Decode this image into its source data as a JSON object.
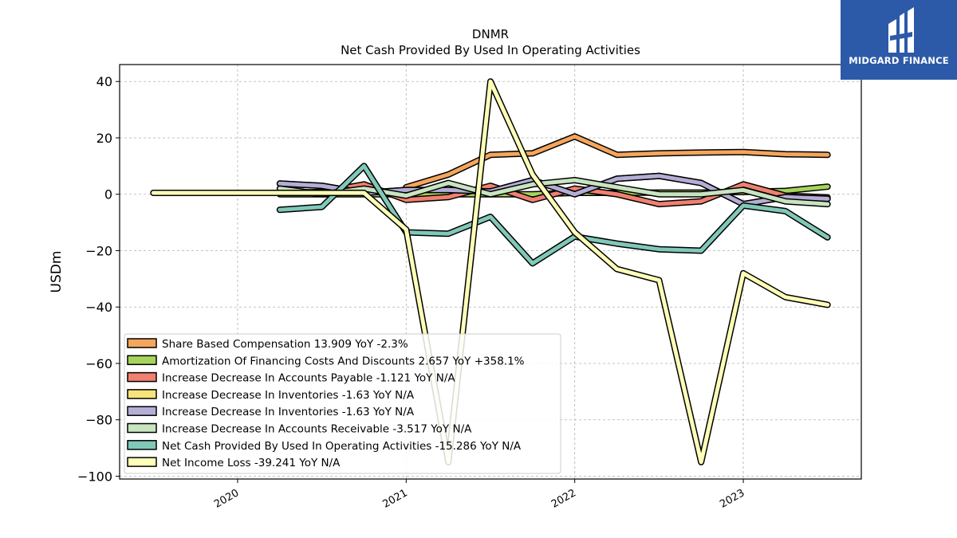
{
  "logo": {
    "text": "MIDGARD FINANCE",
    "color": "#2d5aa8"
  },
  "chart_data": {
    "type": "line",
    "title": "DNMR",
    "subtitle": "Net Cash Provided By Used In Operating Activities",
    "ylabel": "USDm",
    "xlabel": "",
    "ylim": [
      -101,
      46
    ],
    "xlim": [
      2019.3,
      2023.7
    ],
    "yticks": [
      40,
      20,
      0,
      -20,
      -40,
      -60,
      -80,
      -100
    ],
    "ytick_labels": [
      "40",
      "20",
      "0",
      "−20",
      "−40",
      "−60",
      "−80",
      "−100"
    ],
    "xticks": [
      2020,
      2021,
      2022,
      2023
    ],
    "xtick_labels": [
      "2020",
      "2021",
      "2022",
      "2023"
    ],
    "grid": true,
    "legend_position": "bottom-left",
    "series": [
      {
        "name": "Share Based Compensation  13.909 YoY -2.3%",
        "color": "#f5a55c",
        "x": [
          2021.0,
          2021.25,
          2021.5,
          2021.75,
          2022.0,
          2022.25,
          2022.5,
          2022.75,
          2023.0,
          2023.25,
          2023.5
        ],
        "values": [
          2.5,
          7,
          14,
          14.5,
          20.5,
          14,
          14.5,
          14.8,
          15,
          14.2,
          14
        ]
      },
      {
        "name": "Amortization Of Financing Costs And Discounts  2.657 YoY +358.1%",
        "color": "#a5d45c",
        "x": [
          2020.25,
          2020.5,
          2020.75,
          2021.0,
          2021.25,
          2021.5,
          2021.75,
          2022.0,
          2022.25,
          2022.5,
          2022.75,
          2023.0,
          2023.25,
          2023.5
        ],
        "values": [
          0,
          0,
          0,
          0,
          0,
          0,
          0,
          0.5,
          0.5,
          0.6,
          0.6,
          0.8,
          1.2,
          2.7
        ]
      },
      {
        "name": "Increase Decrease In Accounts Payable  -1.121 YoY N/A",
        "color": "#f08070",
        "x": [
          2020.25,
          2020.5,
          2020.75,
          2021.0,
          2021.25,
          2021.5,
          2021.75,
          2022.0,
          2022.25,
          2022.5,
          2022.75,
          2023.0,
          2023.25,
          2023.5
        ],
        "values": [
          0.5,
          0.8,
          3.5,
          -2,
          -1,
          3,
          -2,
          2,
          0,
          -3.5,
          -2.5,
          3.5,
          -0.5,
          -1.1
        ]
      },
      {
        "name": "Increase Decrease In Inventories  -1.63 YoY N/A",
        "color": "#f7e37a",
        "x": [
          2020.25,
          2020.5,
          2020.75,
          2021.0,
          2021.25,
          2021.5,
          2021.75,
          2022.0,
          2022.25,
          2022.5,
          2022.75,
          2023.0,
          2023.25,
          2023.5
        ],
        "values": [
          3.8,
          3,
          0.5,
          1.5,
          1.5,
          1,
          5,
          0,
          5.5,
          6.5,
          4,
          -3.5,
          -1,
          -1.6
        ]
      },
      {
        "name": "Increase Decrease In Inventories  -1.63 YoY N/A",
        "color": "#b4aed6",
        "x": [
          2020.25,
          2020.5,
          2020.75,
          2021.0,
          2021.25,
          2021.5,
          2021.75,
          2022.0,
          2022.25,
          2022.5,
          2022.75,
          2023.0,
          2023.25,
          2023.5
        ],
        "values": [
          3.8,
          3,
          0.5,
          1.5,
          1.5,
          1,
          5,
          0,
          5.5,
          6.5,
          4,
          -3.5,
          -1,
          -1.6
        ]
      },
      {
        "name": "Increase Decrease In Accounts Receivable  -3.517 YoY N/A",
        "color": "#c8e4c0",
        "x": [
          2020.25,
          2020.5,
          2020.75,
          2021.0,
          2021.25,
          2021.5,
          2021.75,
          2022.0,
          2022.25,
          2022.5,
          2022.75,
          2023.0,
          2023.25,
          2023.5
        ],
        "values": [
          2,
          0,
          2,
          -0.5,
          4,
          0,
          3.5,
          5,
          2.5,
          0,
          0,
          1.5,
          -2.5,
          -3.5
        ]
      },
      {
        "name": "Net Cash Provided By Used In Operating Activities  -15.286 YoY N/A",
        "color": "#80c8b8",
        "x": [
          2020.25,
          2020.5,
          2020.75,
          2021.0,
          2021.25,
          2021.5,
          2021.75,
          2022.0,
          2022.25,
          2022.5,
          2022.75,
          2023.0,
          2023.25,
          2023.5
        ],
        "values": [
          -5.5,
          -4.5,
          10,
          -13.5,
          -14,
          -8,
          -24.5,
          -15,
          -17.5,
          -19.5,
          -20,
          -4,
          -6,
          -15.3
        ]
      },
      {
        "name": "Net Income Loss  -39.241 YoY N/A",
        "color": "#ffffb8",
        "x": [
          2019.5,
          2019.75,
          2020.0,
          2020.25,
          2020.5,
          2020.75,
          2021.0,
          2021.25,
          2021.5,
          2021.75,
          2022.0,
          2022.25,
          2022.5,
          2022.75,
          2023.0,
          2023.25,
          2023.5
        ],
        "values": [
          0.5,
          0.5,
          0.5,
          0.5,
          0.5,
          0.5,
          -12.5,
          -95,
          40,
          7,
          -13.5,
          -26.5,
          -30.5,
          -95,
          -28,
          -36.5,
          -39.2
        ]
      }
    ]
  }
}
